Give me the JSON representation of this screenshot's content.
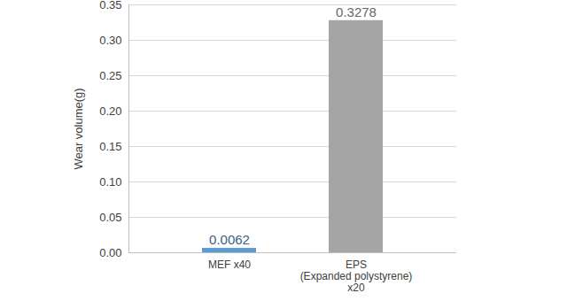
{
  "chart_data": {
    "type": "bar",
    "categories": [
      "MEF x40",
      "EPS\n(Expanded polystyrene)\nx20"
    ],
    "values": [
      0.0062,
      0.3278
    ],
    "colors": [
      "#5b9bd5",
      "#a5a5a5"
    ],
    "y_label": "Wear volume(g)",
    "ylim": [
      0,
      0.35
    ],
    "yticks": [
      {
        "value": 0,
        "label": "0.00"
      },
      0.05,
      {
        "value": 0.1,
        "label": "0.10"
      },
      0.15,
      {
        "value": 0.2,
        "label": "0.20"
      },
      0.25,
      {
        "value": 0.3,
        "label": "0.30"
      },
      0.35
    ],
    "grid": true,
    "data_labels": true
  }
}
